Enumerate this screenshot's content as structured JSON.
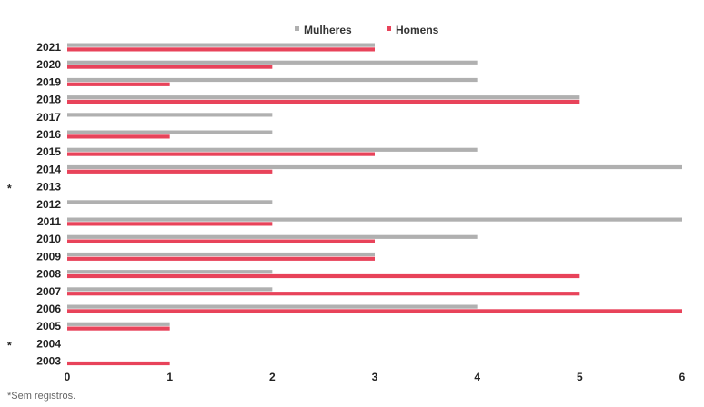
{
  "chart_data": {
    "type": "bar",
    "orientation": "horizontal",
    "categories": [
      "2021",
      "2020",
      "2019",
      "2018",
      "2017",
      "2016",
      "2015",
      "2014",
      "2013",
      "2012",
      "2011",
      "2010",
      "2009",
      "2008",
      "2007",
      "2006",
      "2005",
      "2004",
      "2003"
    ],
    "category_markers": [
      "",
      "",
      "",
      "",
      "",
      "",
      "",
      "",
      "*",
      "",
      "",
      "",
      "",
      "",
      "",
      "",
      "",
      "*",
      ""
    ],
    "series": [
      {
        "name": "Mulheres",
        "color": "#b0b0b0",
        "values": [
          3,
          4,
          4,
          5,
          2,
          2,
          4,
          6,
          0,
          2,
          6,
          4,
          3,
          2,
          2,
          4,
          1,
          0,
          0
        ]
      },
      {
        "name": "Homens",
        "color": "#e8435a",
        "values": [
          3,
          2,
          1,
          5,
          0,
          1,
          3,
          2,
          0,
          0,
          2,
          3,
          3,
          5,
          5,
          6,
          1,
          0,
          1
        ]
      }
    ],
    "xlim": [
      0,
      6
    ],
    "xticks": [
      "0",
      "1",
      "2",
      "3",
      "4",
      "5",
      "6"
    ],
    "legend_position": "top-center",
    "footnote": "*Sem registros."
  }
}
